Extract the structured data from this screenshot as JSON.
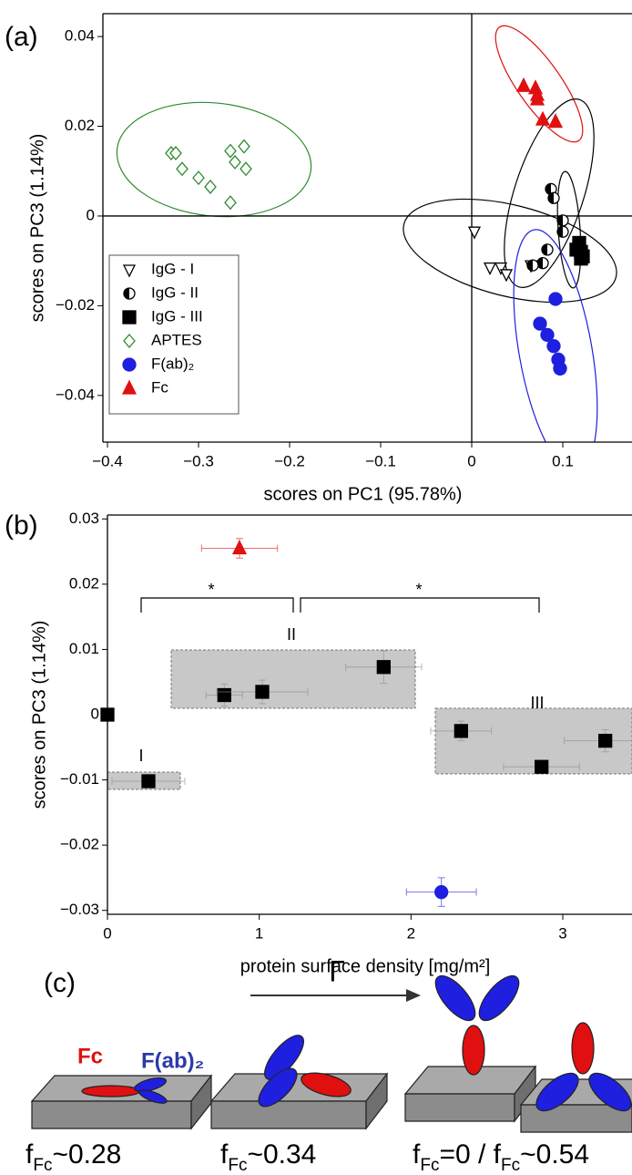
{
  "chart_data": [
    {
      "type": "scatter",
      "panel_label": "(a)",
      "xlabel": "scores on PC1 (95.78%)",
      "ylabel": "scores on PC3 (1.14%)",
      "xlim": [
        -0.405,
        0.176
      ],
      "ylim": [
        -0.0504,
        0.0451
      ],
      "xticks": [
        {
          "value": -0.4,
          "label": "−0.4"
        },
        {
          "value": -0.3,
          "label": "−0.3"
        },
        {
          "value": -0.2,
          "label": "−0.2"
        },
        {
          "value": -0.1,
          "label": "−0.1"
        },
        0,
        0.1
      ],
      "yticks": [
        {
          "value": -0.04,
          "label": "−0.04"
        },
        {
          "value": -0.02,
          "label": "−0.02"
        },
        0,
        0.02,
        0.04
      ],
      "origin_lines": true,
      "legend": "lower left",
      "series": [
        {
          "name": "IgG - I",
          "marker": "triangle-down-open",
          "color": "#000000",
          "x": [
            0.003,
            0.02,
            0.032,
            0.038,
            0.065
          ],
          "values": [
            -0.0035,
            -0.0115,
            -0.0115,
            -0.013,
            -0.011
          ]
        },
        {
          "name": "IgG - II",
          "marker": "circle-half",
          "color": "#000000",
          "x": [
            0.087,
            0.09,
            0.1,
            0.1,
            0.083,
            0.078,
            0.067
          ],
          "values": [
            0.006,
            0.004,
            -0.001,
            -0.0035,
            -0.0075,
            -0.0105,
            -0.011
          ]
        },
        {
          "name": "IgG - III",
          "marker": "square",
          "color": "#000000",
          "x": [
            0.118,
            0.115,
            0.12,
            0.122,
            0.12
          ],
          "values": [
            -0.006,
            -0.0075,
            -0.008,
            -0.009,
            -0.0095
          ]
        },
        {
          "name": "APTES",
          "marker": "diamond-open",
          "color": "#2e8b2e",
          "x": [
            -0.33,
            -0.325,
            -0.318,
            -0.3,
            -0.287,
            -0.265,
            -0.26,
            -0.25,
            -0.248,
            -0.265
          ],
          "values": [
            0.014,
            0.014,
            0.0105,
            0.0085,
            0.0065,
            0.0145,
            0.012,
            0.0155,
            0.0105,
            0.003
          ]
        },
        {
          "name": "F(ab)₂",
          "marker": "circle",
          "color": "#1f1fe0",
          "x": [
            0.092,
            0.075,
            0.083,
            0.09,
            0.095,
            0.097
          ],
          "values": [
            -0.0185,
            -0.024,
            -0.0265,
            -0.029,
            -0.032,
            -0.034
          ]
        },
        {
          "name": "Fc",
          "marker": "triangle-up",
          "color": "#e01010",
          "x": [
            0.057,
            0.07,
            0.072,
            0.072,
            0.078,
            0.092
          ],
          "values": [
            0.029,
            0.0285,
            0.027,
            0.026,
            0.0215,
            0.021
          ]
        }
      ]
    },
    {
      "type": "scatter",
      "panel_label": "(b)",
      "xlabel": "protein surface density [mg/m²]",
      "ylabel": "scores on PC3 (1.14%)",
      "xlim": [
        0,
        3.456
      ],
      "ylim": [
        -0.0306,
        0.0306
      ],
      "xticks": [
        0,
        1,
        2,
        3
      ],
      "yticks": [
        {
          "value": -0.03,
          "label": "−0.03"
        },
        {
          "value": -0.02,
          "label": "−0.02"
        },
        {
          "value": -0.01,
          "label": "−0.01"
        },
        0,
        0.01,
        0.02,
        0.03
      ],
      "annotations": [
        "I",
        "II",
        "III",
        "*",
        "*"
      ],
      "series": [
        {
          "marker": "square",
          "color": "#000000",
          "x": [
            0,
            0.27,
            0.77,
            1.02,
            1.82,
            2.33,
            2.86,
            3.28
          ],
          "values": [
            0,
            -0.0102,
            0.003,
            0.0035,
            0.0073,
            -0.0025,
            -0.008,
            -0.004
          ],
          "xerr": [
            null,
            0.24,
            0.12,
            0.3,
            0.25,
            0.2,
            0.25,
            0.27
          ],
          "yerr": [
            null,
            0.001,
            0.0017,
            0.0018,
            0.0025,
            0.0015,
            0.0008,
            0.0017
          ]
        },
        {
          "marker": "triangle-up",
          "color": "#e01010",
          "x": [
            0.87
          ],
          "values": [
            0.0255
          ],
          "xerr": [
            0.25
          ],
          "yerr": [
            0.0015
          ]
        },
        {
          "marker": "circle",
          "color": "#1f1fe0",
          "x": [
            2.2
          ],
          "values": [
            -0.0272
          ],
          "xerr": [
            0.23
          ],
          "yerr": [
            0.0022
          ]
        }
      ]
    }
  ],
  "illustration": {
    "panel_label": "(c)",
    "fc": "Fc",
    "fab": "F(ab)₂",
    "arrow_label": "Γ",
    "fractions": [
      [
        {
          "text": "f"
        },
        {
          "sub": "Fc"
        },
        {
          "text": "~0.28"
        }
      ],
      [
        {
          "text": "f"
        },
        {
          "sub": "Fc"
        },
        {
          "text": "~0.34"
        }
      ],
      [
        {
          "text": "f"
        },
        {
          "sub": "Fc"
        },
        {
          "text": "=0 / f"
        },
        {
          "sub": "Fc"
        },
        {
          "text": "~0.54"
        }
      ]
    ]
  }
}
